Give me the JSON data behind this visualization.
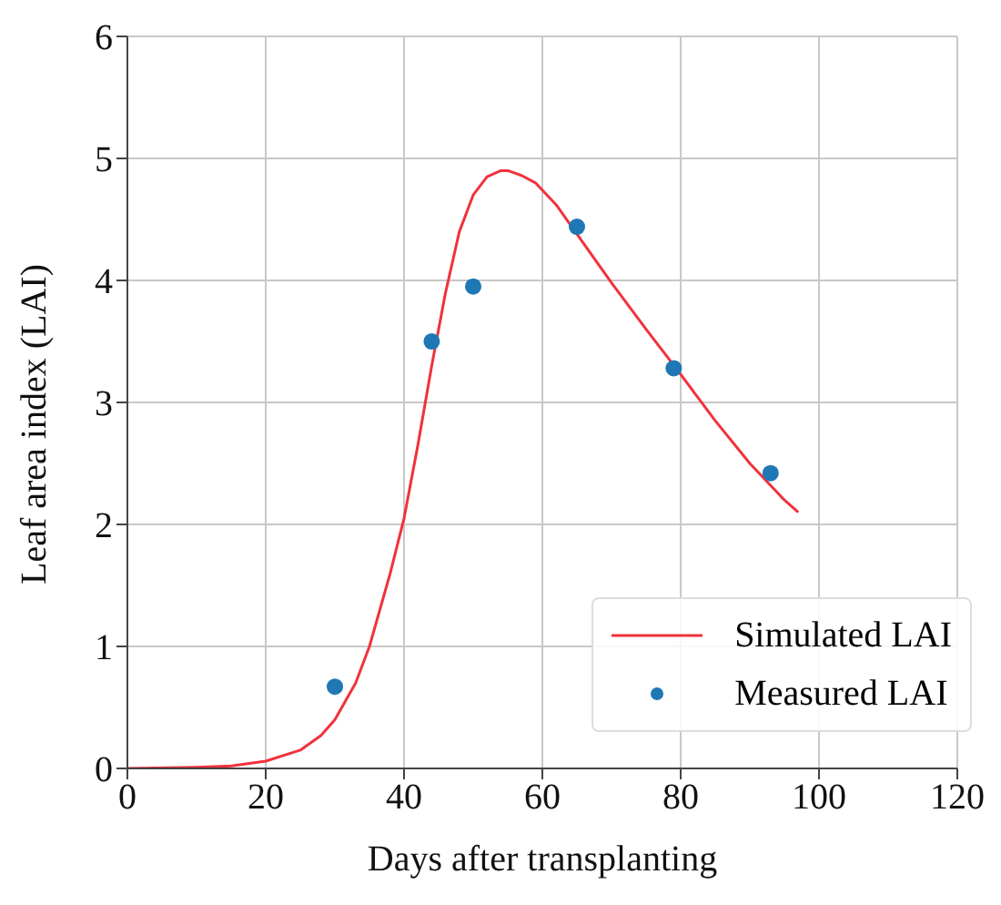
{
  "chart_data": {
    "type": "line",
    "xlabel": "Days after transplanting",
    "ylabel": "Leaf area index (LAI)",
    "xlim": [
      0,
      120
    ],
    "xticks": [
      0,
      20,
      40,
      60,
      80,
      100,
      120
    ],
    "ylim": [
      0,
      6
    ],
    "yticks": [
      0,
      1,
      2,
      3,
      4,
      5,
      6
    ],
    "grid": true,
    "legend": "bottom right",
    "series": [
      {
        "name": "Simulated LAI",
        "color": "#f0323c",
        "marker": "none",
        "line_style": "solid",
        "x": [
          0,
          10,
          15,
          20,
          25,
          28,
          30,
          33,
          35,
          38,
          40,
          42,
          44,
          46,
          48,
          50,
          52,
          54,
          55,
          57,
          59,
          62,
          65,
          70,
          75,
          80,
          85,
          90,
          95,
          97
        ],
        "values": [
          0,
          0.01,
          0.02,
          0.06,
          0.15,
          0.27,
          0.4,
          0.7,
          1.0,
          1.6,
          2.05,
          2.65,
          3.3,
          3.9,
          4.4,
          4.7,
          4.85,
          4.9,
          4.9,
          4.86,
          4.8,
          4.62,
          4.38,
          3.98,
          3.6,
          3.23,
          2.85,
          2.5,
          2.2,
          2.1
        ]
      },
      {
        "name": "Measured LAI",
        "type": "scatter",
        "color": "#1f77b4",
        "marker": "circle",
        "x": [
          30,
          44,
          50,
          65,
          79,
          93
        ],
        "values": [
          0.67,
          3.5,
          3.95,
          4.44,
          3.28,
          2.42
        ]
      }
    ]
  }
}
